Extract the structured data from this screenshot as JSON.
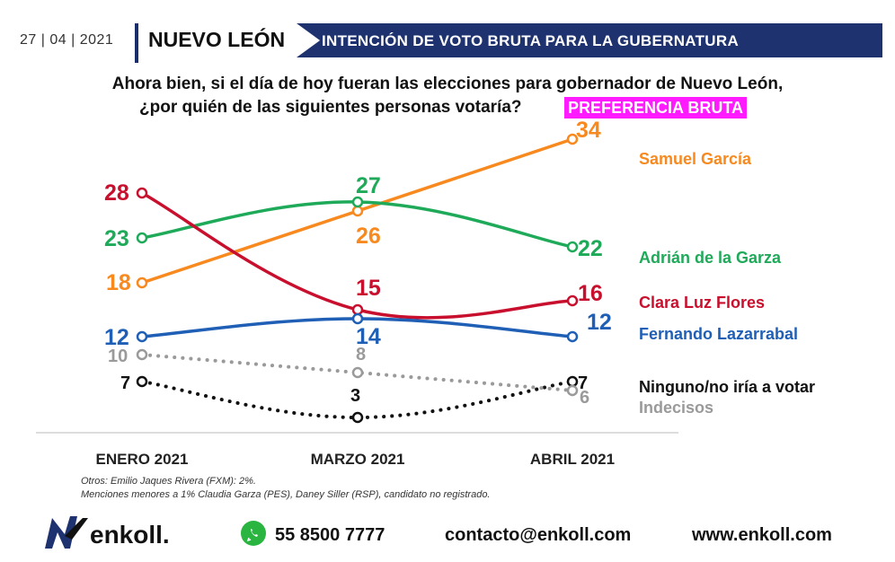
{
  "header": {
    "date": "27 | 04 | 2021",
    "state": "NUEVO LEÓN",
    "banner": "INTENCIÓN DE VOTO BRUTA PARA LA GUBERNATURA"
  },
  "question": {
    "line1": "Ahora bien, si el día de hoy fueran las elecciones para gobernador de Nuevo León,",
    "line2": "¿por quién de las siguientes personas votaría?",
    "tag": "PREFERENCIA BRUTA"
  },
  "chart_data": {
    "type": "line",
    "categories": [
      "ENERO 2021",
      "MARZO 2021",
      "ABRIL 2021"
    ],
    "series": [
      {
        "name": "Samuel García",
        "values": [
          18,
          26,
          34
        ],
        "color": "#f7891f",
        "style": "solid"
      },
      {
        "name": "Adrián de la Garza",
        "values": [
          23,
          27,
          22
        ],
        "color": "#1faa5a",
        "style": "solid"
      },
      {
        "name": "Clara Luz Flores",
        "values": [
          28,
          15,
          16
        ],
        "color": "#c8102e",
        "style": "solid"
      },
      {
        "name": "Fernando Lazarrabal",
        "values": [
          12,
          14,
          12
        ],
        "color": "#1f5fb5",
        "style": "solid"
      },
      {
        "name": "Ninguno/no iría a votar",
        "values": [
          7,
          3,
          7
        ],
        "color": "#111111",
        "style": "dotted"
      },
      {
        "name": "Indecisos",
        "values": [
          10,
          8,
          6
        ],
        "color": "#9a9a9a",
        "style": "dotted"
      }
    ],
    "ylim": [
      0,
      36
    ]
  },
  "notes": {
    "line1": "Otros: Emilio Jaques Rivera (FXM): 2%.",
    "line2": "Menciones menores a 1% Claudia Garza (PES), Daney Siller (RSP), candidato no registrado."
  },
  "footer": {
    "brand": "enkoll.",
    "phone": "55 8500 7777",
    "email": "contacto@enkoll.com",
    "web": "www.enkoll.com",
    "accent": "#1e3270"
  }
}
